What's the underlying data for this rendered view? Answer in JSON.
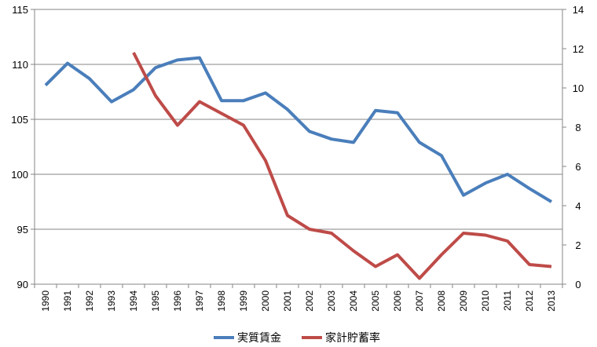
{
  "chart_data": {
    "type": "line",
    "x": [
      "1990",
      "1991",
      "1992",
      "1993",
      "1994",
      "1995",
      "1996",
      "1997",
      "1998",
      "1999",
      "2000",
      "2001",
      "2002",
      "2003",
      "2004",
      "2005",
      "2006",
      "2007",
      "2008",
      "2009",
      "2010",
      "2011",
      "2012",
      "2013"
    ],
    "y_left": {
      "min": 90,
      "max": 115,
      "step": 5,
      "ticks": [
        "90",
        "95",
        "100",
        "105",
        "110",
        "115"
      ]
    },
    "y_right": {
      "min": 0,
      "max": 14,
      "step": 2,
      "ticks": [
        "0",
        "2",
        "4",
        "6",
        "8",
        "10",
        "12",
        "14"
      ]
    },
    "grid": true,
    "legend_position": "bottom",
    "series": [
      {
        "name": "実質賃金",
        "axis": "left",
        "color": "#4a7ebb",
        "values": [
          108.1,
          110.1,
          108.7,
          106.6,
          107.7,
          109.7,
          110.4,
          110.6,
          106.7,
          106.7,
          107.4,
          105.9,
          103.9,
          103.2,
          102.9,
          105.8,
          105.6,
          102.9,
          101.7,
          98.1,
          99.2,
          100.0,
          98.7,
          97.5
        ]
      },
      {
        "name": "家計貯蓄率",
        "axis": "right",
        "color": "#be4b48",
        "values": [
          null,
          null,
          null,
          null,
          11.8,
          9.6,
          8.1,
          9.3,
          8.7,
          8.1,
          6.3,
          3.5,
          2.8,
          2.6,
          1.7,
          0.9,
          1.5,
          0.3,
          1.5,
          2.6,
          2.5,
          2.2,
          1.0,
          0.9
        ]
      }
    ]
  }
}
